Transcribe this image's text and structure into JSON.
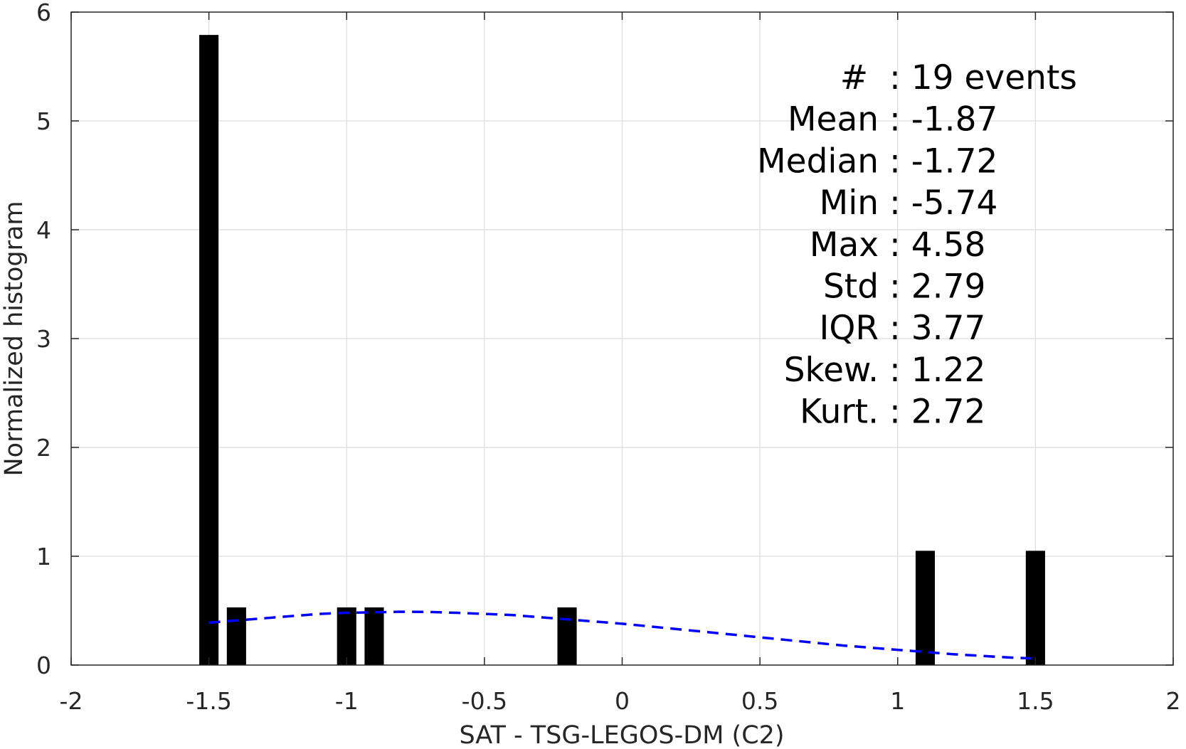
{
  "chart_data": {
    "type": "bar",
    "xlabel": "SAT - TSG-LEGOS-DM (C2)",
    "ylabel": "Normalized histogram",
    "xlim": [
      -2,
      2
    ],
    "ylim": [
      0,
      6
    ],
    "grid": true,
    "x_ticks": [
      -2,
      -1.5,
      -1,
      -0.5,
      0,
      0.5,
      1,
      1.5,
      2
    ],
    "x_tick_labels": [
      "-2",
      "-1.5",
      "-1",
      "-0.5",
      "0",
      "0.5",
      "1",
      "1.5",
      "2"
    ],
    "y_ticks": [
      0,
      1,
      2,
      3,
      4,
      5,
      6
    ],
    "y_tick_labels": [
      "0",
      "1",
      "2",
      "3",
      "4",
      "5",
      "6"
    ],
    "bar_width": 0.07,
    "bars": [
      {
        "x": -1.5,
        "value": 5.79
      },
      {
        "x": -1.4,
        "value": 0.53
      },
      {
        "x": -1.0,
        "value": 0.53
      },
      {
        "x": -0.9,
        "value": 0.53
      },
      {
        "x": -0.2,
        "value": 0.53
      },
      {
        "x": 1.1,
        "value": 1.05
      },
      {
        "x": 1.5,
        "value": 1.05
      }
    ],
    "fit_curve": {
      "style": "dashed",
      "color": "#0000ff",
      "x": [
        -1.5,
        -1.4,
        -1.3,
        -1.2,
        -1.1,
        -1.0,
        -0.9,
        -0.8,
        -0.7,
        -0.6,
        -0.5,
        -0.4,
        -0.3,
        -0.2,
        -0.1,
        0.0,
        0.1,
        0.2,
        0.3,
        0.4,
        0.5,
        0.6,
        0.7,
        0.8,
        0.9,
        1.0,
        1.1,
        1.2,
        1.3,
        1.4,
        1.5
      ],
      "y": [
        0.39,
        0.41,
        0.43,
        0.45,
        0.47,
        0.48,
        0.485,
        0.49,
        0.488,
        0.48,
        0.47,
        0.46,
        0.44,
        0.42,
        0.4,
        0.38,
        0.355,
        0.33,
        0.305,
        0.28,
        0.255,
        0.23,
        0.205,
        0.18,
        0.16,
        0.14,
        0.12,
        0.1,
        0.085,
        0.07,
        0.06
      ]
    },
    "bar_color": "#000000"
  },
  "stats": [
    {
      "label": "#  ",
      "value": ": 19 events"
    },
    {
      "label": "Mean ",
      "value": ": -1.87"
    },
    {
      "label": "Median ",
      "value": ": -1.72"
    },
    {
      "label": "Min ",
      "value": ": -5.74"
    },
    {
      "label": "Max ",
      "value": ": 4.58"
    },
    {
      "label": "Std ",
      "value": ": 2.79"
    },
    {
      "label": "IQR ",
      "value": ": 3.77"
    },
    {
      "label": "Skew. ",
      "value": ": 1.22"
    },
    {
      "label": "Kurt. ",
      "value": ": 2.72"
    }
  ]
}
